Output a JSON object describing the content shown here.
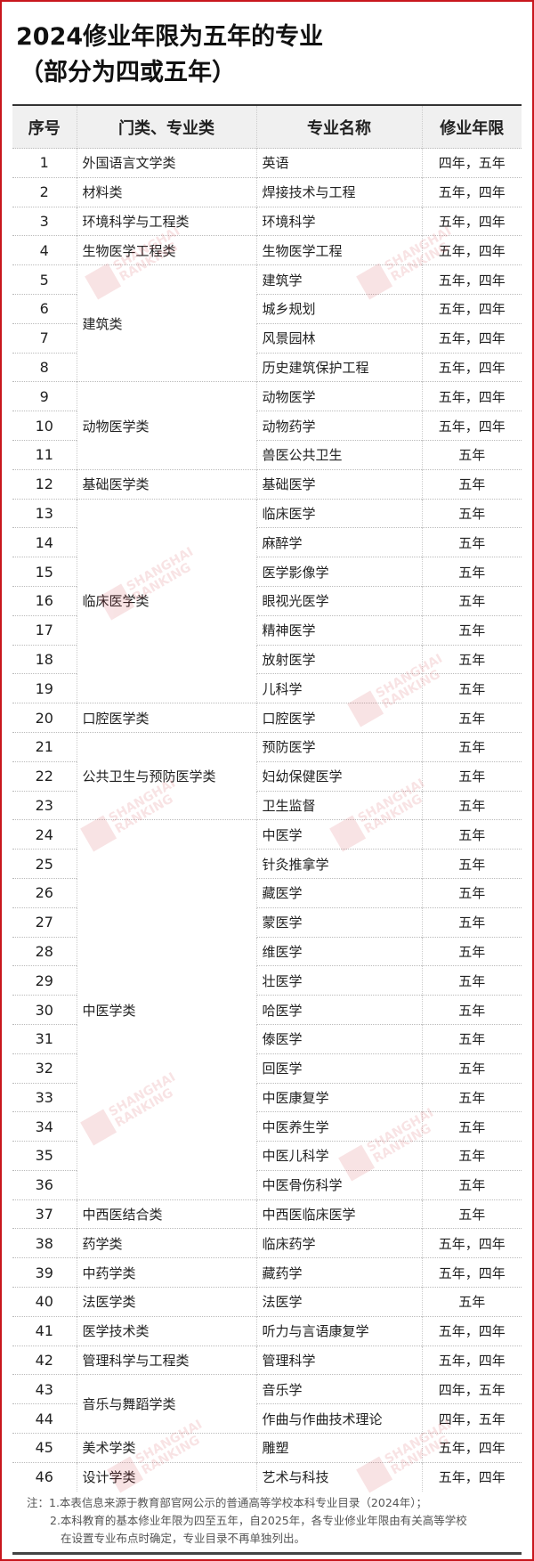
{
  "title": {
    "line1": "2024修业年限为五年的专业",
    "line2": "（部分为四或五年）"
  },
  "table": {
    "headers": [
      "序号",
      "门类、专业类",
      "专业名称",
      "修业年限"
    ],
    "rows": [
      [
        "1",
        "外国语言文学类",
        "英语",
        "四年，五年"
      ],
      [
        "2",
        "材料类",
        "焊接技术与工程",
        "五年，四年"
      ],
      [
        "3",
        "环境科学与工程类",
        "环境科学",
        "五年，四年"
      ],
      [
        "4",
        "生物医学工程类",
        "生物医学工程",
        "五年，四年"
      ],
      [
        "5",
        "建筑类",
        "建筑学",
        "五年，四年"
      ],
      [
        "6",
        "",
        "城乡规划",
        "五年，四年"
      ],
      [
        "7",
        "",
        "风景园林",
        "五年，四年"
      ],
      [
        "8",
        "",
        "历史建筑保护工程",
        "五年，四年"
      ],
      [
        "9",
        "动物医学类",
        "动物医学",
        "五年，四年"
      ],
      [
        "10",
        "",
        "动物药学",
        "五年，四年"
      ],
      [
        "11",
        "",
        "兽医公共卫生",
        "五年"
      ],
      [
        "12",
        "基础医学类",
        "基础医学",
        "五年"
      ],
      [
        "13",
        "临床医学类",
        "临床医学",
        "五年"
      ],
      [
        "14",
        "",
        "麻醉学",
        "五年"
      ],
      [
        "15",
        "",
        "医学影像学",
        "五年"
      ],
      [
        "16",
        "",
        "眼视光医学",
        "五年"
      ],
      [
        "17",
        "",
        "精神医学",
        "五年"
      ],
      [
        "18",
        "",
        "放射医学",
        "五年"
      ],
      [
        "19",
        "",
        "儿科学",
        "五年"
      ],
      [
        "20",
        "口腔医学类",
        "口腔医学",
        "五年"
      ],
      [
        "21",
        "公共卫生与预防医学类",
        "预防医学",
        "五年"
      ],
      [
        "22",
        "",
        "妇幼保健医学",
        "五年"
      ],
      [
        "23",
        "",
        "卫生监督",
        "五年"
      ],
      [
        "24",
        "中医学类",
        "中医学",
        "五年"
      ],
      [
        "25",
        "",
        "针灸推拿学",
        "五年"
      ],
      [
        "26",
        "",
        "藏医学",
        "五年"
      ],
      [
        "27",
        "",
        "蒙医学",
        "五年"
      ],
      [
        "28",
        "",
        "维医学",
        "五年"
      ],
      [
        "29",
        "",
        "壮医学",
        "五年"
      ],
      [
        "30",
        "",
        "哈医学",
        "五年"
      ],
      [
        "31",
        "",
        "傣医学",
        "五年"
      ],
      [
        "32",
        "",
        "回医学",
        "五年"
      ],
      [
        "33",
        "",
        "中医康复学",
        "五年"
      ],
      [
        "34",
        "",
        "中医养生学",
        "五年"
      ],
      [
        "35",
        "",
        "中医儿科学",
        "五年"
      ],
      [
        "36",
        "",
        "中医骨伤科学",
        "五年"
      ],
      [
        "37",
        "中西医结合类",
        "中西医临床医学",
        "五年"
      ],
      [
        "38",
        "药学类",
        "临床药学",
        "五年，四年"
      ],
      [
        "39",
        "中药学类",
        "藏药学",
        "五年，四年"
      ],
      [
        "40",
        "法医学类",
        "法医学",
        "五年"
      ],
      [
        "41",
        "医学技术类",
        "听力与言语康复学",
        "五年，四年"
      ],
      [
        "42",
        "管理科学与工程类",
        "管理科学",
        "五年，四年"
      ],
      [
        "43",
        "音乐与舞蹈学类",
        "音乐学",
        "四年，五年"
      ],
      [
        "44",
        "",
        "作曲与作曲技术理论",
        "四年，五年"
      ],
      [
        "45",
        "美术学类",
        "雕塑",
        "五年，四年"
      ],
      [
        "46",
        "设计学类",
        "艺术与科技",
        "五年，四年"
      ]
    ]
  },
  "notes": [
    "注：1.本表信息来源于教育部官网公示的普通高等学校本科专业目录（2024年）；",
    "2.本科教育的基本修业年限为四至五年，自2025年，各专业修业年限由有关高等学校",
    "在设置专业布点时确定，专业目录不再单独列出。"
  ],
  "watermark": {
    "text": "SHANGHAI RANKING",
    "color": "#d0303a"
  },
  "colors": {
    "frame": "#c8161d",
    "header_bg": "#f0f0f0"
  }
}
